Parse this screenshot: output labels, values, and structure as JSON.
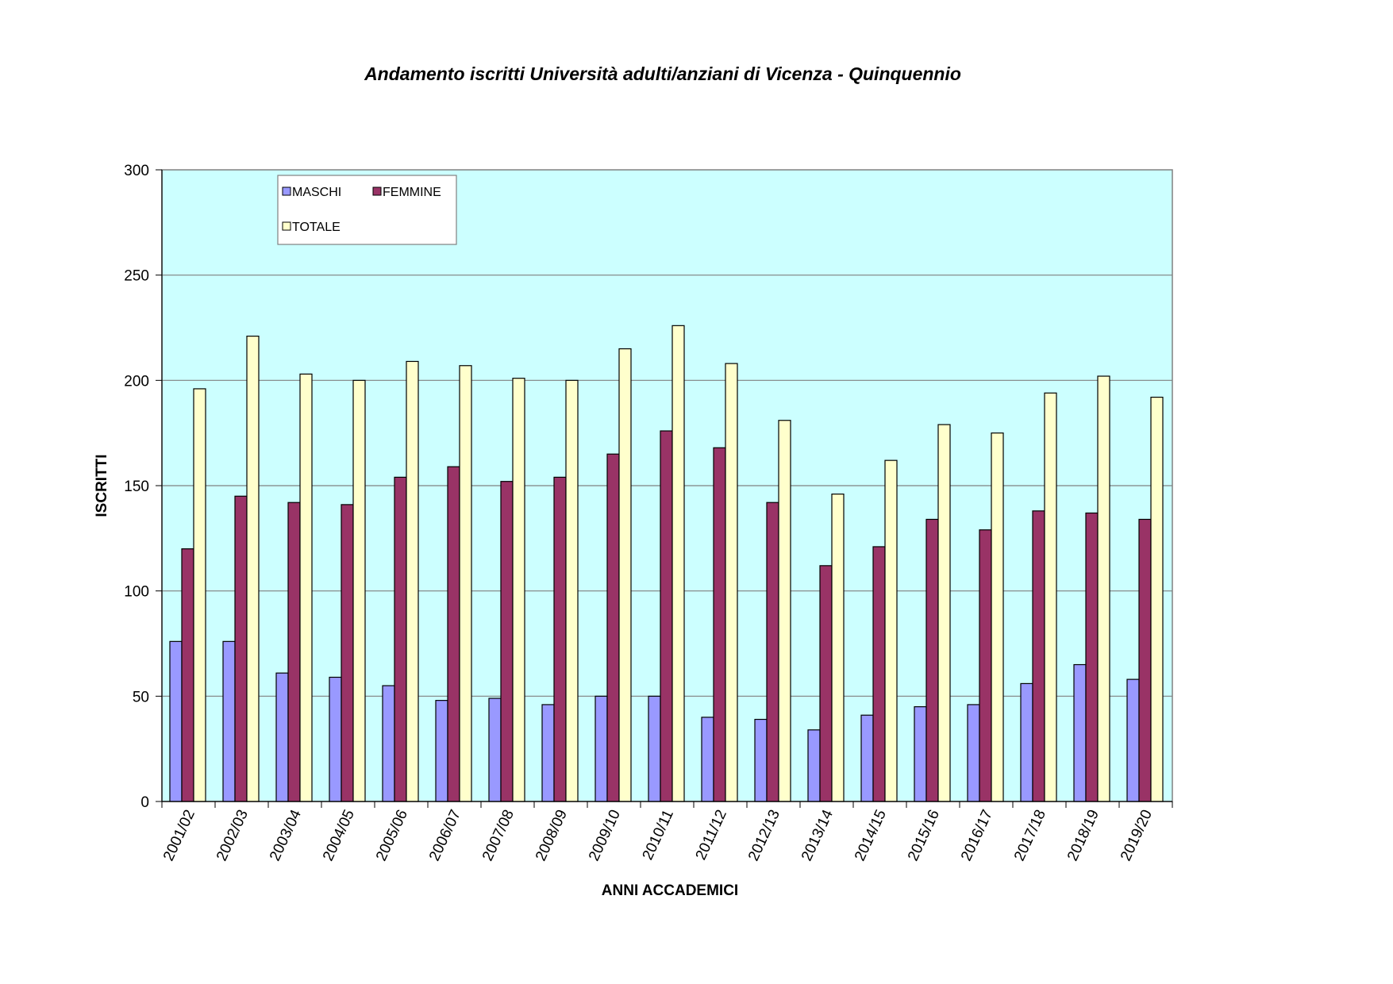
{
  "chart_data": {
    "type": "bar",
    "title": "Andamento iscritti Università adulti/anziani di Vicenza - Quinquennio",
    "xlabel": "ANNI ACCADEMICI",
    "ylabel": "ISCRITTI",
    "ylim": [
      0,
      300
    ],
    "yticks": [
      0,
      50,
      100,
      150,
      200,
      250,
      300
    ],
    "grid": true,
    "legend_position": "top-left",
    "plot_background": "#CCFFFF",
    "categories": [
      "2001/02",
      "2002/03",
      "2003/04",
      "2004/05",
      "2005/06",
      "2006/07",
      "2007/08",
      "2008/09",
      "2009/10",
      "2010/11",
      "2011/12",
      "2012/13",
      "2013/14",
      "2014/15",
      "2015/16",
      "2016/17",
      "2017/18",
      "2018/19",
      "2019/20"
    ],
    "series": [
      {
        "name": "MASCHI",
        "color": "#9999FF",
        "values": [
          76,
          76,
          61,
          59,
          55,
          48,
          49,
          46,
          50,
          50,
          40,
          39,
          34,
          41,
          45,
          46,
          56,
          65,
          58
        ]
      },
      {
        "name": "FEMMINE",
        "color": "#993366",
        "values": [
          120,
          145,
          142,
          141,
          154,
          159,
          152,
          154,
          165,
          176,
          168,
          142,
          112,
          121,
          134,
          129,
          138,
          137,
          134
        ]
      },
      {
        "name": "TOTALE",
        "color": "#FFFFCC",
        "values": [
          196,
          221,
          203,
          200,
          209,
          207,
          201,
          200,
          215,
          226,
          208,
          181,
          146,
          162,
          179,
          175,
          194,
          202,
          192
        ]
      }
    ]
  }
}
